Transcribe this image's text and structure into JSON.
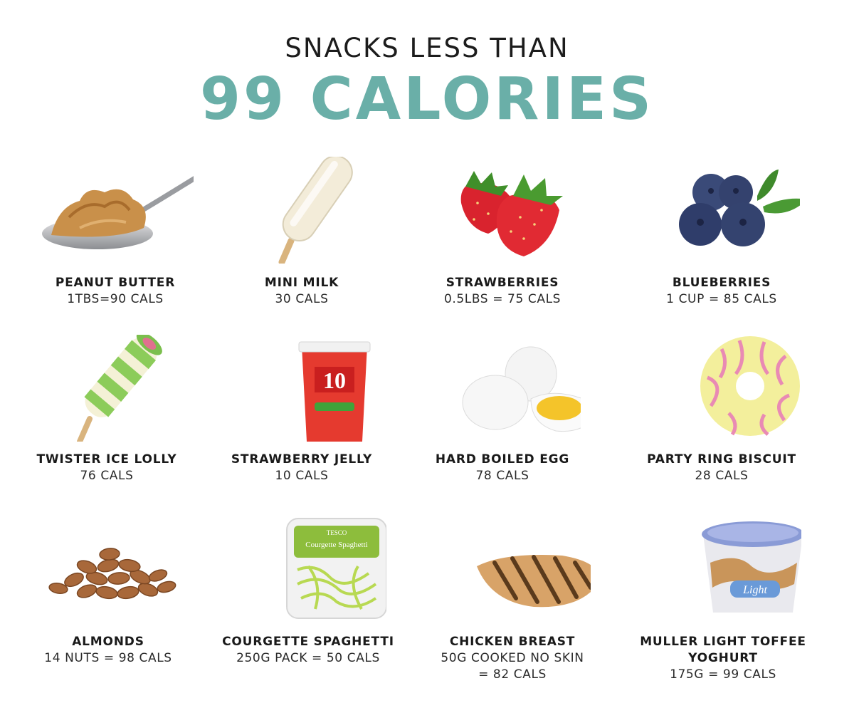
{
  "header": {
    "subtitle": "SNACKS LESS THAN",
    "title": "99 CALORIES"
  },
  "colors": {
    "title_accent": "#6aafa8",
    "text": "#1a1a1a"
  },
  "snacks": [
    {
      "name": "PEANUT BUTTER",
      "detail": "1TBS=90 CALS",
      "icon": "peanut-butter-spoon-icon"
    },
    {
      "name": "MINI MILK",
      "detail": "30 CALS",
      "icon": "ice-lolly-icon"
    },
    {
      "name": "STRAWBERRIES",
      "detail": "0.5LBS = 75 CALS",
      "icon": "strawberries-icon"
    },
    {
      "name": "BLUEBERRIES",
      "detail": "1 CUP = 85 CALS",
      "icon": "blueberries-icon"
    },
    {
      "name": "TWISTER ICE LOLLY",
      "detail": "76 CALS",
      "icon": "twister-lolly-icon"
    },
    {
      "name": "STRAWBERRY JELLY",
      "detail": "10 CALS",
      "icon": "jelly-pot-icon",
      "pot_text": "10"
    },
    {
      "name": "HARD BOILED EGG",
      "detail": "78 CALS",
      "icon": "boiled-egg-icon"
    },
    {
      "name": "PARTY RING BISCUIT",
      "detail": "28 CALS",
      "icon": "party-ring-icon"
    },
    {
      "name": "ALMONDS",
      "detail": "14 NUTS = 98 CALS",
      "icon": "almonds-icon"
    },
    {
      "name": "COURGETTE SPAGHETTI",
      "detail": "250G PACK = 50 CALS",
      "icon": "courgette-pack-icon",
      "pack_brand": "TESCO",
      "pack_text": "Courgette Spaghetti"
    },
    {
      "name": "CHICKEN BREAST",
      "detail1": "50G COOKED NO SKIN",
      "detail2": "= 82 CALS",
      "icon": "chicken-breast-icon"
    },
    {
      "name1": "MULLER LIGHT TOFFEE",
      "name2": "YOGHURT",
      "detail": "175G = 99 CALS",
      "icon": "yoghurt-pot-icon",
      "pot_text": "Light"
    }
  ]
}
